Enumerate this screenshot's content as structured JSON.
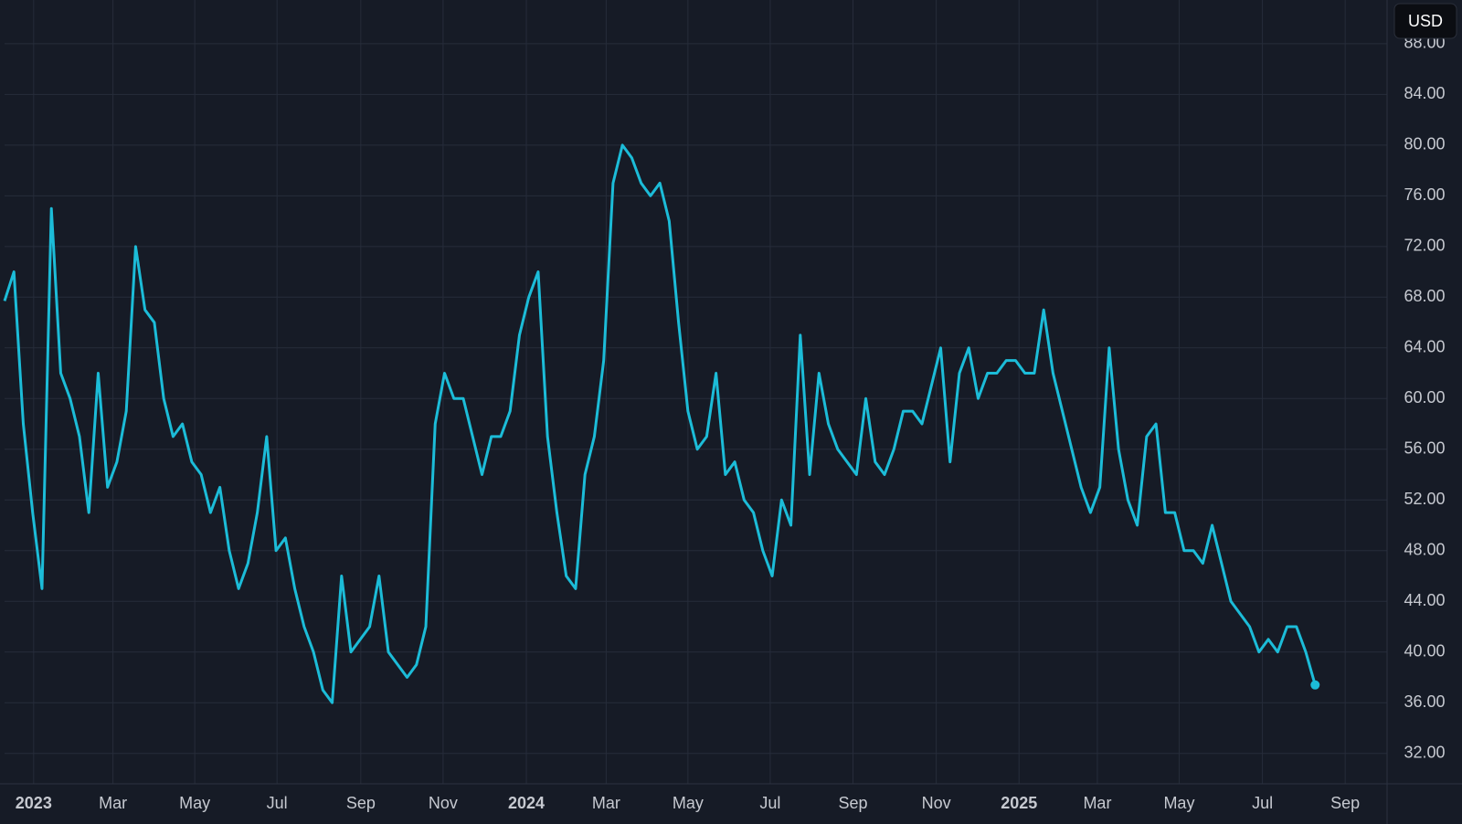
{
  "chart_data": {
    "type": "line",
    "currency_label": "USD",
    "color": "#1cbcd8",
    "x": [
      2022.941,
      2022.96,
      2022.979,
      2022.998,
      2023.017,
      2023.036,
      2023.055,
      2023.074,
      2023.093,
      2023.112,
      2023.131,
      2023.15,
      2023.169,
      2023.188,
      2023.207,
      2023.226,
      2023.245,
      2023.264,
      2023.283,
      2023.302,
      2023.321,
      2023.34,
      2023.359,
      2023.378,
      2023.397,
      2023.416,
      2023.435,
      2023.454,
      2023.473,
      2023.492,
      2023.511,
      2023.53,
      2023.549,
      2023.568,
      2023.587,
      2023.606,
      2023.625,
      2023.644,
      2023.663,
      2023.682,
      2023.701,
      2023.72,
      2023.739,
      2023.758,
      2023.777,
      2023.796,
      2023.815,
      2023.834,
      2023.853,
      2023.872,
      2023.891,
      2023.91,
      2023.929,
      2023.948,
      2023.967,
      2023.986,
      2024.005,
      2024.024,
      2024.043,
      2024.062,
      2024.081,
      2024.1,
      2024.119,
      2024.138,
      2024.157,
      2024.176,
      2024.195,
      2024.214,
      2024.233,
      2024.252,
      2024.271,
      2024.29,
      2024.309,
      2024.328,
      2024.347,
      2024.366,
      2024.385,
      2024.404,
      2024.423,
      2024.442,
      2024.461,
      2024.48,
      2024.499,
      2024.518,
      2024.537,
      2024.556,
      2024.575,
      2024.594,
      2024.613,
      2024.632,
      2024.651,
      2024.67,
      2024.689,
      2024.708,
      2024.727,
      2024.746,
      2024.765,
      2024.784,
      2024.803,
      2024.822,
      2024.841,
      2024.86,
      2024.879,
      2024.898,
      2024.917,
      2024.936,
      2024.955,
      2024.974,
      2024.993,
      2025.012,
      2025.031,
      2025.05,
      2025.069,
      2025.088,
      2025.107,
      2025.126,
      2025.145,
      2025.164,
      2025.183,
      2025.202,
      2025.221,
      2025.24,
      2025.259,
      2025.278,
      2025.297,
      2025.316,
      2025.335,
      2025.354,
      2025.373,
      2025.392,
      2025.411,
      2025.43,
      2025.449,
      2025.468,
      2025.487,
      2025.506,
      2025.525,
      2025.544,
      2025.563,
      2025.582,
      2025.601
    ],
    "values": [
      67.7,
      70,
      58,
      51,
      45,
      75,
      62,
      60,
      57,
      51,
      62,
      53,
      55,
      59,
      72,
      67,
      66,
      60,
      57,
      58,
      55,
      54,
      51,
      53,
      48,
      45,
      47,
      51,
      57,
      48,
      49,
      45,
      42,
      40,
      37,
      36,
      46,
      40,
      41,
      42,
      46,
      40,
      39,
      38,
      39,
      42,
      58,
      62,
      60,
      60,
      57,
      54,
      57,
      57,
      59,
      65,
      68,
      70,
      57,
      51,
      46,
      45,
      54,
      57,
      63,
      77,
      80,
      79,
      77,
      76,
      77,
      74,
      66,
      59,
      56,
      57,
      62,
      54,
      55,
      52,
      51,
      48,
      46,
      52,
      50,
      65,
      54,
      62,
      58,
      56,
      55,
      54,
      60,
      55,
      54,
      56,
      59,
      59,
      58,
      61,
      64,
      55,
      62,
      64,
      60,
      62,
      62,
      63,
      63,
      62,
      62,
      67,
      62,
      59,
      56,
      53,
      51,
      53,
      64,
      56,
      52,
      50,
      57,
      58,
      51,
      51,
      48,
      48,
      47,
      50,
      47,
      44,
      43,
      42,
      40,
      41,
      40,
      42,
      42,
      40,
      37.4
    ],
    "xlim": [
      2022.941,
      2025.747
    ],
    "xticks": [
      2023,
      {
        "value": 2023.161,
        "label": "Mar"
      },
      {
        "value": 2023.327,
        "label": "May"
      },
      {
        "value": 2023.494,
        "label": "Jul"
      },
      {
        "value": 2023.664,
        "label": "Sep"
      },
      {
        "value": 2023.831,
        "label": "Nov"
      },
      2024,
      {
        "value": 2024.162,
        "label": "Mar"
      },
      {
        "value": 2024.328,
        "label": "May"
      },
      {
        "value": 2024.495,
        "label": "Jul"
      },
      {
        "value": 2024.663,
        "label": "Sep"
      },
      {
        "value": 2024.832,
        "label": "Nov"
      },
      2025,
      {
        "value": 2025.159,
        "label": "Mar"
      },
      {
        "value": 2025.325,
        "label": "May"
      },
      {
        "value": 2025.494,
        "label": "Jul"
      },
      {
        "value": 2025.662,
        "label": "Sep"
      }
    ],
    "ylim": [
      29.6,
      91.45
    ],
    "yticks": [
      {
        "value": 32,
        "label": "32.00"
      },
      {
        "value": 36,
        "label": "36.00"
      },
      {
        "value": 40,
        "label": "40.00"
      },
      {
        "value": 44,
        "label": "44.00"
      },
      {
        "value": 48,
        "label": "48.00"
      },
      {
        "value": 52,
        "label": "52.00"
      },
      {
        "value": 56,
        "label": "56.00"
      },
      {
        "value": 60,
        "label": "60.00"
      },
      {
        "value": 64,
        "label": "64.00"
      },
      {
        "value": 68,
        "label": "68.00"
      },
      {
        "value": 72,
        "label": "72.00"
      },
      {
        "value": 76,
        "label": "76.00"
      },
      {
        "value": 80,
        "label": "80.00"
      },
      {
        "value": 84,
        "label": "84.00"
      },
      {
        "value": 88,
        "label": "88.00"
      }
    ],
    "grid": true
  }
}
